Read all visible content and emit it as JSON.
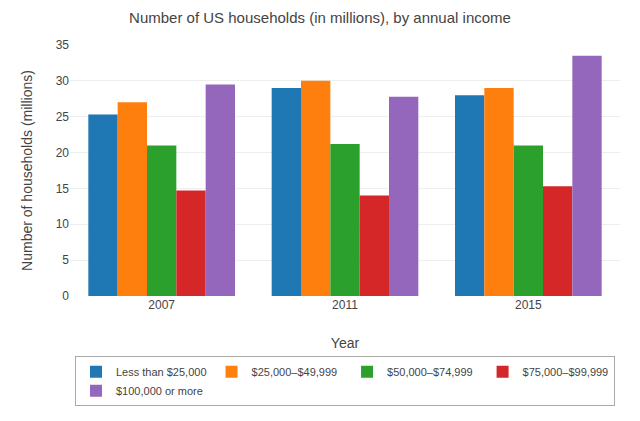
{
  "chart_data": {
    "type": "bar",
    "title": "Number of US households (in millions), by annual income",
    "xlabel": "Year",
    "ylabel": "Number of households (millions)",
    "categories": [
      "2007",
      "2011",
      "2015"
    ],
    "series": [
      {
        "name": "Less than $25,000",
        "values": [
          25.3,
          29.0,
          28.0
        ]
      },
      {
        "name": "$25,000–$49,999",
        "values": [
          27.0,
          30.0,
          29.0
        ]
      },
      {
        "name": "$50,000–$74,999",
        "values": [
          21.0,
          21.2,
          21.0
        ]
      },
      {
        "name": "$75,000–$99,999",
        "values": [
          14.7,
          14.0,
          15.3
        ]
      },
      {
        "name": "$100,000 or more",
        "values": [
          29.5,
          27.8,
          33.5
        ]
      }
    ],
    "ylim": [
      0,
      35
    ],
    "yticks": [
      0,
      5,
      10,
      15,
      20,
      25,
      30,
      35
    ],
    "grid": true,
    "legend": "bottom"
  }
}
